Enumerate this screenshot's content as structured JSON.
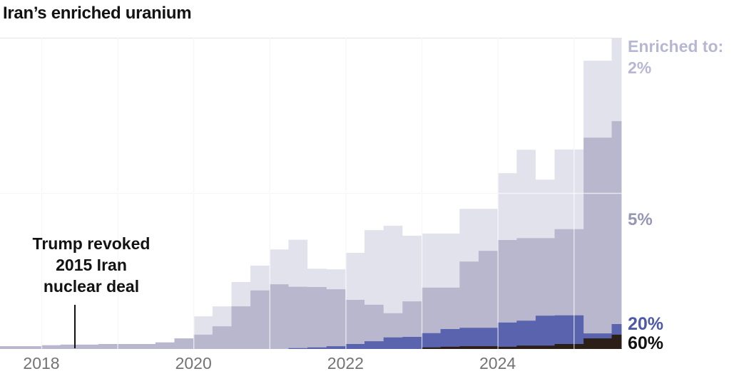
{
  "title": "Iran’s enriched uranium",
  "annotation": {
    "lines": [
      "Trump revoked",
      "2015 Iran",
      "nuclear deal"
    ]
  },
  "legend": {
    "heading": "Enriched to:",
    "label_2": "2%",
    "label_5": "5%",
    "label_20": "20%",
    "label_60": "60%"
  },
  "x_axis": {
    "ticks": [
      {
        "label": "2018",
        "year": 2018
      },
      {
        "label": "2020",
        "year": 2020
      },
      {
        "label": "2022",
        "year": 2022
      },
      {
        "label": "2024",
        "year": 2024
      }
    ]
  },
  "colors": {
    "enriched_2": "#e2e2ec",
    "enriched_5": "#b8b7cd",
    "enriched_20": "#5a63ae",
    "enriched_60": "#2b1f17",
    "label_2": "#b7b7d3",
    "label_5": "#9696b6",
    "label_20": "#4c59a8",
    "label_60": "#111111",
    "axis_text": "#737373",
    "gridline": "#e3e3e3",
    "title_text": "#121212"
  },
  "chart_data": {
    "type": "area",
    "subtype": "stacked-step-area",
    "title": "Iran’s enriched uranium",
    "xlabel": "",
    "ylabel": "",
    "y_note": "y-axis has no printed labels; values are relative units where 100 = top gridline of plot",
    "ylim": [
      0,
      100
    ],
    "x_range": [
      2017.45,
      2025.63
    ],
    "gridlines": {
      "vertical_years": [
        2018,
        2019,
        2020,
        2021,
        2022,
        2023,
        2024,
        2025
      ],
      "horizontal_values": [
        50,
        100
      ],
      "grid_on": true
    },
    "legend_position": "right",
    "x_step_start_years": [
      2017.45,
      2017.75,
      2018.0,
      2018.25,
      2018.5,
      2018.75,
      2019.0,
      2019.25,
      2019.5,
      2019.75,
      2020.0,
      2020.25,
      2020.5,
      2020.75,
      2021.0,
      2021.25,
      2021.5,
      2021.75,
      2022.0,
      2022.25,
      2022.5,
      2022.75,
      2023.0,
      2023.25,
      2023.5,
      2023.75,
      2024.0,
      2024.25,
      2024.5,
      2024.75,
      2025.13,
      2025.5
    ],
    "x_end_year": 2025.63,
    "series": [
      {
        "name": "Enriched to 60%",
        "label": "60%",
        "color": "#2b1f17",
        "values": [
          0,
          0,
          0,
          0,
          0,
          0,
          0,
          0,
          0,
          0,
          0,
          0,
          0,
          0,
          0,
          0,
          0,
          0,
          0,
          0,
          0,
          0,
          0.5,
          0.7,
          0.9,
          0.9,
          0.7,
          1.1,
          1.1,
          1.6,
          3.4,
          4.6
        ]
      },
      {
        "name": "Enriched to 20%",
        "label": "20%",
        "color": "#5a63ae",
        "values": [
          0,
          0,
          0,
          0,
          0,
          0,
          0,
          0,
          0,
          0,
          0,
          0,
          0,
          0,
          0,
          0.3,
          0.5,
          0.9,
          1.6,
          2.5,
          3.7,
          3.9,
          4.6,
          5.7,
          5.9,
          5.9,
          7.8,
          8.0,
          9.6,
          9.2,
          1.6,
          3.4
        ]
      },
      {
        "name": "Enriched to 5%",
        "label": "5%",
        "color": "#b8b7cd",
        "values": [
          0.9,
          0.9,
          1.2,
          1.4,
          1.4,
          1.6,
          1.6,
          1.6,
          2.1,
          3.4,
          4.6,
          7.3,
          13.7,
          18.8,
          20.8,
          19.7,
          19.4,
          18.3,
          14.2,
          11.7,
          7.8,
          11.4,
          14.6,
          13.3,
          21.3,
          24.7,
          26.5,
          26.5,
          24.9,
          27.7,
          62.9,
          65.2
        ]
      },
      {
        "name": "Enriched to 2%",
        "label": "2%",
        "color": "#e2e2ec",
        "values": [
          0,
          0,
          0,
          0,
          0,
          0,
          0,
          0,
          0,
          0,
          5.9,
          6.4,
          7.8,
          8.0,
          11.2,
          15.1,
          5.9,
          6.4,
          15.1,
          24.0,
          28.1,
          21.1,
          17.4,
          17.4,
          16.9,
          13.5,
          21.5,
          28.4,
          18.8,
          25.6,
          24.7,
          26.8
        ]
      }
    ],
    "annotation": {
      "text": "Trump revoked 2015 Iran nuclear deal",
      "x_year": 2018.42
    }
  }
}
